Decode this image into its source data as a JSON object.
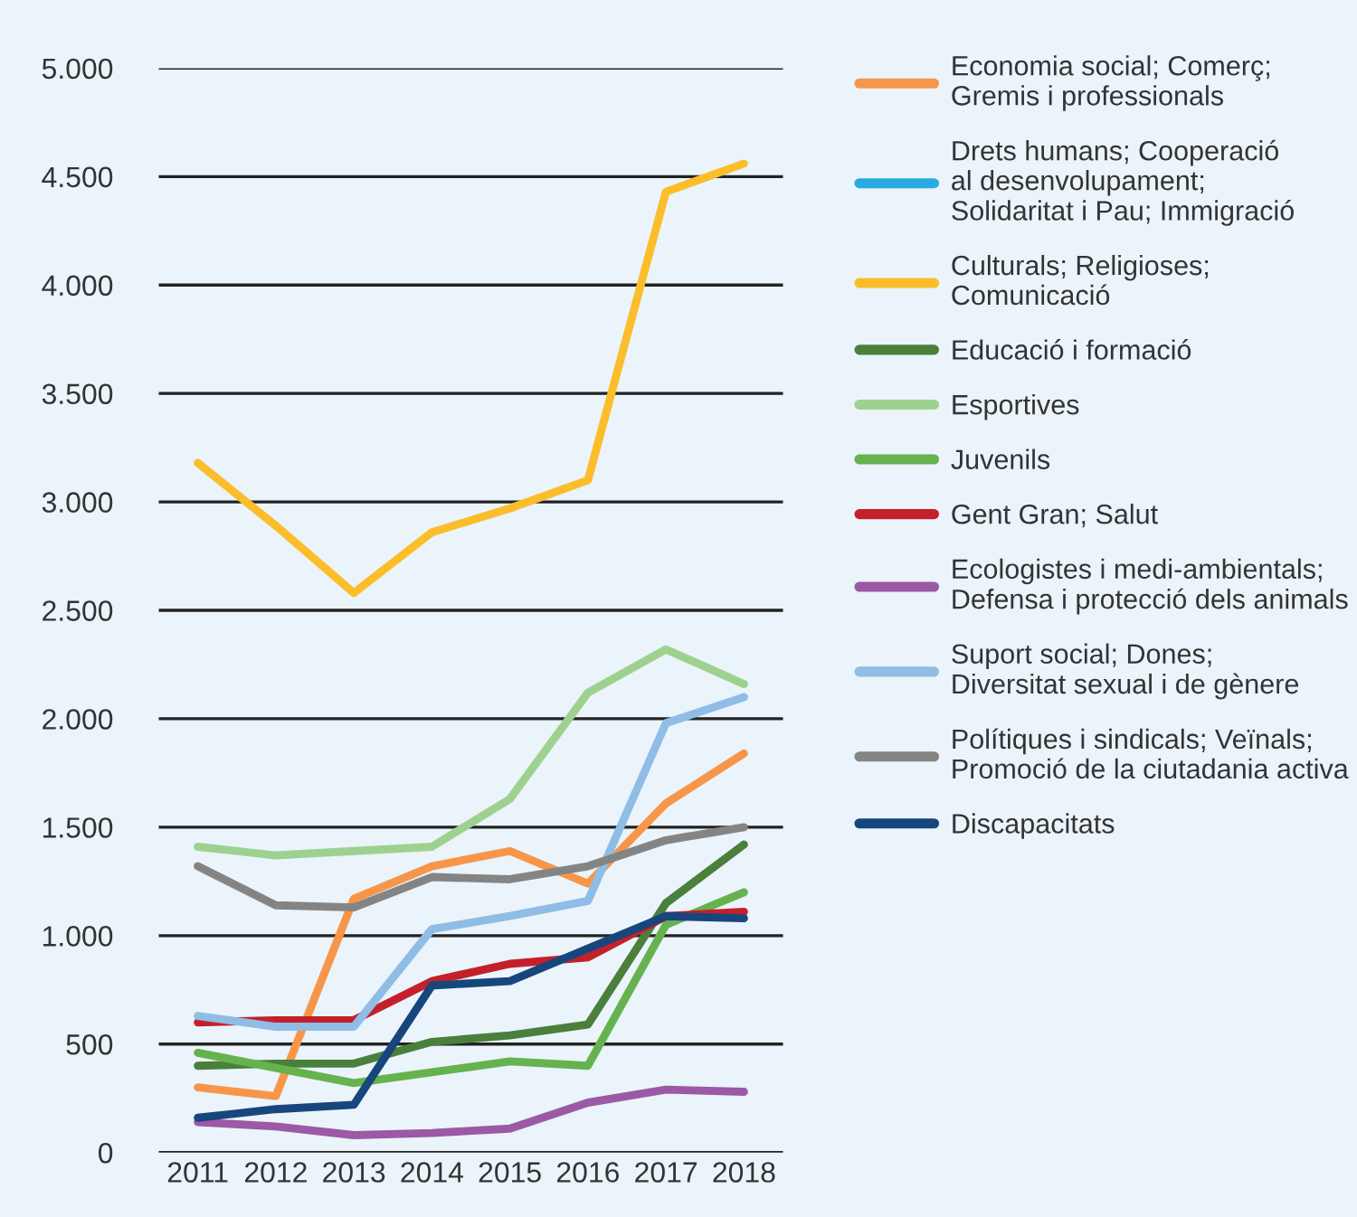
{
  "chart_data": {
    "type": "line",
    "categories": [
      "2011",
      "2012",
      "2013",
      "2014",
      "2015",
      "2016",
      "2017",
      "2018"
    ],
    "ylim": [
      0,
      5000
    ],
    "yticks": [
      {
        "value": 0,
        "label": "0"
      },
      {
        "value": 500,
        "label": "500"
      },
      {
        "value": 1000,
        "label": "1.000"
      },
      {
        "value": 1500,
        "label": "1.500"
      },
      {
        "value": 2000,
        "label": "2.000"
      },
      {
        "value": 2500,
        "label": "2.500"
      },
      {
        "value": 3000,
        "label": "3.000"
      },
      {
        "value": 3500,
        "label": "3.500"
      },
      {
        "value": 4000,
        "label": "4.000"
      },
      {
        "value": 4500,
        "label": "4.500"
      },
      {
        "value": 5000,
        "label": "5.000"
      }
    ],
    "grid": "y",
    "legend": "right",
    "marker": "none",
    "line_style": "solid",
    "series": [
      {
        "name": "Economia social; Comerç;\nGremis i professionals",
        "color": "#f7964a",
        "values": [
          300,
          260,
          1170,
          1320,
          1390,
          1240,
          1610,
          1840
        ]
      },
      {
        "name": "Drets humans; Cooperació\nal desenvolupament;\nSolidaritat i Pau; Immigració",
        "color": "#29abe2",
        "values": [
          null,
          null,
          null,
          null,
          null,
          null,
          null,
          null
        ]
      },
      {
        "name": "Culturals; Religioses;\nComunicació",
        "color": "#fbbd2a",
        "values": [
          3180,
          2890,
          2580,
          2860,
          2970,
          3100,
          4430,
          4560
        ]
      },
      {
        "name": "Educació i formació",
        "color": "#4a7f3c",
        "values": [
          400,
          410,
          410,
          510,
          540,
          590,
          1150,
          1420
        ]
      },
      {
        "name": "Esportives",
        "color": "#9ed18f",
        "values": [
          1410,
          1370,
          1390,
          1410,
          1630,
          2120,
          2320,
          2160
        ]
      },
      {
        "name": "Juvenils",
        "color": "#66b24e",
        "values": [
          460,
          390,
          320,
          370,
          420,
          400,
          1050,
          1200
        ]
      },
      {
        "name": "Gent Gran; Salut",
        "color": "#c4202b",
        "values": [
          600,
          610,
          610,
          790,
          870,
          900,
          1090,
          1110
        ]
      },
      {
        "name": "Ecologistes i medi-ambientals;\nDefensa i protecció dels animals",
        "color": "#9b59a6",
        "values": [
          140,
          120,
          80,
          90,
          110,
          230,
          290,
          280
        ]
      },
      {
        "name": "Suport social; Dones;\nDiversitat sexual i de gènere",
        "color": "#8fbde6",
        "values": [
          630,
          580,
          580,
          1030,
          1090,
          1160,
          1980,
          2100
        ]
      },
      {
        "name": "Polítiques i sindicals; Veïnals;\nPromoció de la ciutadania activa",
        "color": "#848484",
        "values": [
          1320,
          1140,
          1130,
          1270,
          1260,
          1320,
          1440,
          1500
        ]
      },
      {
        "name": "Discapacitats",
        "color": "#17467d",
        "values": [
          160,
          200,
          220,
          770,
          790,
          940,
          1090,
          1080
        ]
      }
    ]
  }
}
